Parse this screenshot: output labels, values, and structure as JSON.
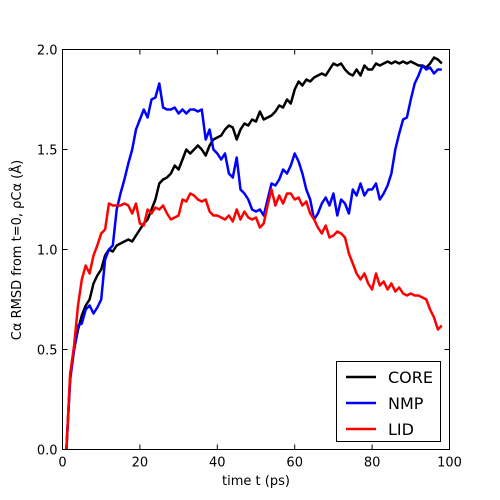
{
  "chart_data": {
    "type": "line",
    "xlabel": "time  t (ps)",
    "ylabel": "Cα RMSD from t=0, ρCα (Å)",
    "xlim": [
      0,
      100
    ],
    "ylim": [
      0,
      2.0
    ],
    "xticks": [
      "0",
      "20",
      "40",
      "60",
      "80",
      "100"
    ],
    "yticks": [
      "0.0",
      "0.5",
      "1.0",
      "1.5",
      "2.0"
    ],
    "legend": {
      "placement": "bottom-right"
    },
    "series": [
      {
        "name": "CORE",
        "color": "#000000",
        "points": [
          [
            1,
            0.0
          ],
          [
            2,
            0.37
          ],
          [
            3,
            0.5
          ],
          [
            4,
            0.6
          ],
          [
            5,
            0.67
          ],
          [
            6,
            0.72
          ],
          [
            7,
            0.75
          ],
          [
            8,
            0.83
          ],
          [
            9,
            0.87
          ],
          [
            10,
            0.9
          ],
          [
            11,
            0.97
          ],
          [
            12,
            1.0
          ],
          [
            13,
            0.99
          ],
          [
            14,
            1.02
          ],
          [
            15,
            1.03
          ],
          [
            16,
            1.04
          ],
          [
            17,
            1.05
          ],
          [
            18,
            1.04
          ],
          [
            19,
            1.07
          ],
          [
            20,
            1.1
          ],
          [
            21,
            1.13
          ],
          [
            22,
            1.15
          ],
          [
            23,
            1.2
          ],
          [
            24,
            1.25
          ],
          [
            25,
            1.33
          ],
          [
            26,
            1.35
          ],
          [
            27,
            1.36
          ],
          [
            28,
            1.38
          ],
          [
            29,
            1.42
          ],
          [
            30,
            1.4
          ],
          [
            31,
            1.45
          ],
          [
            32,
            1.5
          ],
          [
            33,
            1.48
          ],
          [
            34,
            1.5
          ],
          [
            35,
            1.52
          ],
          [
            36,
            1.5
          ],
          [
            37,
            1.47
          ],
          [
            38,
            1.52
          ],
          [
            39,
            1.55
          ],
          [
            40,
            1.56
          ],
          [
            41,
            1.57
          ],
          [
            42,
            1.6
          ],
          [
            43,
            1.62
          ],
          [
            44,
            1.61
          ],
          [
            45,
            1.55
          ],
          [
            46,
            1.6
          ],
          [
            47,
            1.63
          ],
          [
            48,
            1.62
          ],
          [
            49,
            1.65
          ],
          [
            50,
            1.64
          ],
          [
            51,
            1.69
          ],
          [
            52,
            1.65
          ],
          [
            53,
            1.66
          ],
          [
            54,
            1.67
          ],
          [
            55,
            1.69
          ],
          [
            56,
            1.72
          ],
          [
            57,
            1.71
          ],
          [
            58,
            1.75
          ],
          [
            59,
            1.73
          ],
          [
            60,
            1.8
          ],
          [
            61,
            1.84
          ],
          [
            62,
            1.82
          ],
          [
            63,
            1.85
          ],
          [
            64,
            1.84
          ],
          [
            65,
            1.86
          ],
          [
            66,
            1.87
          ],
          [
            67,
            1.88
          ],
          [
            68,
            1.87
          ],
          [
            69,
            1.9
          ],
          [
            70,
            1.93
          ],
          [
            71,
            1.92
          ],
          [
            72,
            1.93
          ],
          [
            73,
            1.9
          ],
          [
            74,
            1.88
          ],
          [
            75,
            1.87
          ],
          [
            76,
            1.9
          ],
          [
            77,
            1.87
          ],
          [
            78,
            1.92
          ],
          [
            79,
            1.9
          ],
          [
            80,
            1.9
          ],
          [
            81,
            1.93
          ],
          [
            82,
            1.92
          ],
          [
            83,
            1.93
          ],
          [
            84,
            1.94
          ],
          [
            85,
            1.93
          ],
          [
            86,
            1.94
          ],
          [
            87,
            1.93
          ],
          [
            88,
            1.94
          ],
          [
            89,
            1.93
          ],
          [
            90,
            1.94
          ],
          [
            91,
            1.93
          ],
          [
            92,
            1.92
          ],
          [
            93,
            1.92
          ],
          [
            94,
            1.91
          ],
          [
            95,
            1.93
          ],
          [
            96,
            1.96
          ],
          [
            97,
            1.95
          ],
          [
            98,
            1.93
          ]
        ]
      },
      {
        "name": "NMP",
        "color": "#0000ff",
        "points": [
          [
            1,
            0.0
          ],
          [
            2,
            0.35
          ],
          [
            3,
            0.5
          ],
          [
            4,
            0.62
          ],
          [
            5,
            0.63
          ],
          [
            6,
            0.7
          ],
          [
            7,
            0.72
          ],
          [
            8,
            0.68
          ],
          [
            9,
            0.71
          ],
          [
            10,
            0.75
          ],
          [
            11,
            0.95
          ],
          [
            12,
            1.0
          ],
          [
            13,
            1.02
          ],
          [
            14,
            1.2
          ],
          [
            15,
            1.28
          ],
          [
            16,
            1.35
          ],
          [
            17,
            1.43
          ],
          [
            18,
            1.5
          ],
          [
            19,
            1.6
          ],
          [
            20,
            1.65
          ],
          [
            21,
            1.7
          ],
          [
            22,
            1.66
          ],
          [
            23,
            1.75
          ],
          [
            24,
            1.76
          ],
          [
            25,
            1.83
          ],
          [
            26,
            1.71
          ],
          [
            27,
            1.7
          ],
          [
            28,
            1.7
          ],
          [
            29,
            1.71
          ],
          [
            30,
            1.68
          ],
          [
            31,
            1.7
          ],
          [
            32,
            1.68
          ],
          [
            33,
            1.7
          ],
          [
            34,
            1.7
          ],
          [
            35,
            1.69
          ],
          [
            36,
            1.7
          ],
          [
            37,
            1.55
          ],
          [
            38,
            1.6
          ],
          [
            39,
            1.5
          ],
          [
            40,
            1.48
          ],
          [
            41,
            1.45
          ],
          [
            42,
            1.48
          ],
          [
            43,
            1.38
          ],
          [
            44,
            1.36
          ],
          [
            45,
            1.46
          ],
          [
            46,
            1.3
          ],
          [
            47,
            1.28
          ],
          [
            48,
            1.25
          ],
          [
            49,
            1.2
          ],
          [
            50,
            1.19
          ],
          [
            51,
            1.2
          ],
          [
            52,
            1.17
          ],
          [
            53,
            1.25
          ],
          [
            54,
            1.33
          ],
          [
            55,
            1.32
          ],
          [
            56,
            1.35
          ],
          [
            57,
            1.4
          ],
          [
            58,
            1.38
          ],
          [
            59,
            1.42
          ],
          [
            60,
            1.48
          ],
          [
            61,
            1.44
          ],
          [
            62,
            1.38
          ],
          [
            63,
            1.3
          ],
          [
            64,
            1.25
          ],
          [
            65,
            1.15
          ],
          [
            66,
            1.18
          ],
          [
            67,
            1.23
          ],
          [
            68,
            1.26
          ],
          [
            69,
            1.22
          ],
          [
            70,
            1.28
          ],
          [
            71,
            1.17
          ],
          [
            72,
            1.25
          ],
          [
            73,
            1.23
          ],
          [
            74,
            1.18
          ],
          [
            75,
            1.3
          ],
          [
            76,
            1.27
          ],
          [
            77,
            1.33
          ],
          [
            78,
            1.27
          ],
          [
            79,
            1.3
          ],
          [
            80,
            1.3
          ],
          [
            81,
            1.33
          ],
          [
            82,
            1.25
          ],
          [
            83,
            1.28
          ],
          [
            84,
            1.32
          ],
          [
            85,
            1.38
          ],
          [
            86,
            1.5
          ],
          [
            87,
            1.58
          ],
          [
            88,
            1.65
          ],
          [
            89,
            1.66
          ],
          [
            90,
            1.75
          ],
          [
            91,
            1.83
          ],
          [
            92,
            1.87
          ],
          [
            93,
            1.92
          ],
          [
            94,
            1.9
          ],
          [
            95,
            1.91
          ],
          [
            96,
            1.88
          ],
          [
            97,
            1.9
          ],
          [
            98,
            1.9
          ]
        ]
      },
      {
        "name": "LID",
        "color": "#ff0000",
        "points": [
          [
            1,
            0.0
          ],
          [
            2,
            0.38
          ],
          [
            3,
            0.52
          ],
          [
            4,
            0.72
          ],
          [
            5,
            0.85
          ],
          [
            6,
            0.92
          ],
          [
            7,
            0.88
          ],
          [
            8,
            0.97
          ],
          [
            9,
            1.02
          ],
          [
            10,
            1.08
          ],
          [
            11,
            1.1
          ],
          [
            12,
            1.23
          ],
          [
            13,
            1.22
          ],
          [
            14,
            1.22
          ],
          [
            15,
            1.22
          ],
          [
            16,
            1.23
          ],
          [
            17,
            1.22
          ],
          [
            18,
            1.18
          ],
          [
            19,
            1.23
          ],
          [
            20,
            1.13
          ],
          [
            21,
            1.12
          ],
          [
            22,
            1.2
          ],
          [
            23,
            1.18
          ],
          [
            24,
            1.21
          ],
          [
            25,
            1.2
          ],
          [
            26,
            1.22
          ],
          [
            27,
            1.18
          ],
          [
            28,
            1.15
          ],
          [
            29,
            1.16
          ],
          [
            30,
            1.17
          ],
          [
            31,
            1.25
          ],
          [
            32,
            1.24
          ],
          [
            33,
            1.28
          ],
          [
            34,
            1.27
          ],
          [
            35,
            1.25
          ],
          [
            36,
            1.24
          ],
          [
            37,
            1.25
          ],
          [
            38,
            1.19
          ],
          [
            39,
            1.17
          ],
          [
            40,
            1.17
          ],
          [
            41,
            1.16
          ],
          [
            42,
            1.15
          ],
          [
            43,
            1.17
          ],
          [
            44,
            1.14
          ],
          [
            45,
            1.2
          ],
          [
            46,
            1.15
          ],
          [
            47,
            1.19
          ],
          [
            48,
            1.16
          ],
          [
            49,
            1.15
          ],
          [
            50,
            1.16
          ],
          [
            51,
            1.11
          ],
          [
            52,
            1.13
          ],
          [
            53,
            1.22
          ],
          [
            54,
            1.3
          ],
          [
            55,
            1.22
          ],
          [
            56,
            1.27
          ],
          [
            57,
            1.23
          ],
          [
            58,
            1.28
          ],
          [
            59,
            1.28
          ],
          [
            60,
            1.25
          ],
          [
            61,
            1.26
          ],
          [
            62,
            1.22
          ],
          [
            63,
            1.24
          ],
          [
            64,
            1.18
          ],
          [
            65,
            1.15
          ],
          [
            66,
            1.11
          ],
          [
            67,
            1.08
          ],
          [
            68,
            1.12
          ],
          [
            69,
            1.06
          ],
          [
            70,
            1.07
          ],
          [
            71,
            1.09
          ],
          [
            72,
            1.08
          ],
          [
            73,
            1.06
          ],
          [
            74,
            0.98
          ],
          [
            75,
            0.93
          ],
          [
            76,
            0.88
          ],
          [
            77,
            0.85
          ],
          [
            78,
            0.88
          ],
          [
            79,
            0.83
          ],
          [
            80,
            0.8
          ],
          [
            81,
            0.88
          ],
          [
            82,
            0.82
          ],
          [
            83,
            0.84
          ],
          [
            84,
            0.8
          ],
          [
            85,
            0.83
          ],
          [
            86,
            0.79
          ],
          [
            87,
            0.81
          ],
          [
            88,
            0.78
          ],
          [
            89,
            0.77
          ],
          [
            90,
            0.78
          ],
          [
            91,
            0.77
          ],
          [
            92,
            0.77
          ],
          [
            93,
            0.76
          ],
          [
            94,
            0.75
          ],
          [
            95,
            0.7
          ],
          [
            96,
            0.66
          ],
          [
            97,
            0.6
          ],
          [
            98,
            0.62
          ]
        ]
      }
    ]
  }
}
